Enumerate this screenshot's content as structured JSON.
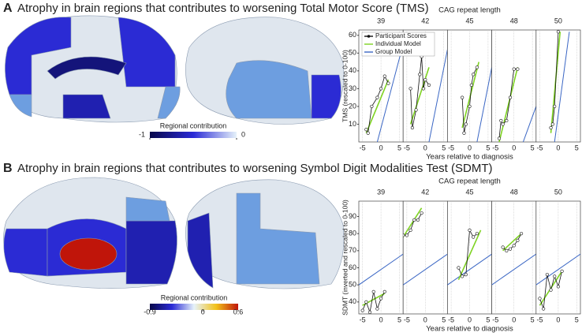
{
  "series": [
    {
      "name": "Participant Scores",
      "color": "#111111"
    },
    {
      "name": "Individual Model",
      "color": "#7ed321"
    },
    {
      "name": "Group Model",
      "color": "#3a66c4"
    }
  ],
  "panels": [
    {
      "label": "A",
      "title": "Atrophy in brain regions that contributes to worsening Total Motor Score (TMS)",
      "colorbar": {
        "title": "Regional contribution",
        "lim": [
          -1,
          0
        ],
        "ticks": [
          -1,
          0
        ],
        "colors": [
          "#08084a",
          "#2a2ad6",
          "#e6f2fa"
        ]
      },
      "chart": {
        "type": "line",
        "title": "CAG repeat length",
        "xlabel": "Years relative to diagnosis",
        "ylabel": "TMS (rescaled to 0-100)",
        "xlim": [
          -6,
          6
        ],
        "xticks": [
          -5,
          0,
          5
        ],
        "ylim": [
          0,
          63
        ],
        "yticks": [
          10,
          20,
          30,
          40,
          50,
          60
        ],
        "facets": [
          {
            "title": 39,
            "participant": {
              "x": [
                -4,
                -3.5,
                -2.5,
                -1,
                0,
                1,
                2
              ],
              "y": [
                7,
                5,
                20,
                25,
                30,
                37,
                33
              ]
            },
            "individual": {
              "x": [
                -4,
                2
              ],
              "y": [
                5,
                35
              ]
            },
            "group": {
              "x": [
                -1,
                6
              ],
              "y": [
                0,
                55
              ]
            }
          },
          {
            "title": 42,
            "participant": {
              "x": [
                -4,
                -3.5,
                -2.5,
                -1.5,
                -1,
                -0.5,
                0,
                1
              ],
              "y": [
                30,
                8,
                18,
                38,
                48,
                30,
                35,
                32
              ]
            },
            "individual": {
              "x": [
                -4,
                1
              ],
              "y": [
                10,
                42
              ]
            },
            "group": {
              "x": [
                1,
                6
              ],
              "y": [
                0,
                52
              ]
            }
          },
          {
            "title": 45,
            "participant": {
              "x": [
                -2,
                -1.5,
                -1,
                0,
                0.5,
                1,
                2
              ],
              "y": [
                25,
                5,
                10,
                20,
                32,
                38,
                42
              ]
            },
            "individual": {
              "x": [
                -2,
                2.5
              ],
              "y": [
                8,
                45
              ]
            },
            "group": {
              "x": [
                2,
                6
              ],
              "y": [
                0,
                42
              ]
            }
          },
          {
            "title": 48,
            "participant": {
              "x": [
                -4,
                -3.5,
                -3,
                -2,
                -1,
                0,
                1
              ],
              "y": [
                2,
                12,
                10,
                12,
                25,
                41,
                41
              ]
            },
            "individual": {
              "x": [
                -4,
                1
              ],
              "y": [
                0,
                42
              ]
            },
            "group": {
              "x": [
                2.5,
                6
              ],
              "y": [
                0,
                20
              ]
            }
          },
          {
            "title": 50,
            "participant": {
              "x": [
                -2,
                -1.5,
                -1,
                0
              ],
              "y": [
                8,
                10,
                20,
                62
              ]
            },
            "individual": {
              "x": [
                -2,
                0.5
              ],
              "y": [
                5,
                62
              ]
            },
            "group": {
              "x": [
                -1,
                3
              ],
              "y": [
                0,
                62
              ]
            }
          }
        ]
      }
    },
    {
      "label": "B",
      "title": "Atrophy in brain regions that contributes to worsening Symbol Digit Modalities Test (SDMT)",
      "colorbar": {
        "title": "Regional contribution",
        "lim": [
          -0.9,
          0.6
        ],
        "ticks": [
          -0.9,
          0,
          0.6
        ],
        "colors": [
          "#08084a",
          "#2a2ad6",
          "#e6f2fa",
          "#f2c21a",
          "#c0150a"
        ]
      },
      "chart": {
        "type": "line",
        "title": "CAG repeat length",
        "xlabel": "Years relative to diagnosis",
        "ylabel": "SDMT (inverted and rescaled to 0-100)",
        "xlim": [
          -6,
          6
        ],
        "xticks": [
          -5,
          0,
          5
        ],
        "ylim": [
          33,
          99
        ],
        "yticks": [
          40,
          50,
          60,
          70,
          80,
          90
        ],
        "facets": [
          {
            "title": 39,
            "participant": {
              "x": [
                -5,
                -4,
                -3,
                -2,
                -1,
                0,
                1
              ],
              "y": [
                35,
                40,
                34,
                46,
                36,
                42,
                46
              ]
            },
            "individual": {
              "x": [
                -5,
                1
              ],
              "y": [
                38,
                45
              ]
            },
            "group": {
              "x": [
                -6,
                6
              ],
              "y": [
                50,
                68
              ]
            }
          },
          {
            "title": 42,
            "participant": {
              "x": [
                -6,
                -5,
                -4,
                -3,
                -2,
                -1
              ],
              "y": [
                79,
                79,
                82,
                88,
                88,
                92
              ]
            },
            "individual": {
              "x": [
                -6,
                -1
              ],
              "y": [
                78,
                95
              ]
            },
            "group": {
              "x": [
                -6,
                6
              ],
              "y": [
                50,
                68
              ]
            }
          },
          {
            "title": 45,
            "participant": {
              "x": [
                -3,
                -2,
                -1,
                0,
                1,
                2
              ],
              "y": [
                60,
                55,
                56,
                82,
                78,
                80
              ]
            },
            "individual": {
              "x": [
                -3,
                3
              ],
              "y": [
                53,
                82
              ]
            },
            "group": {
              "x": [
                -6,
                6
              ],
              "y": [
                50,
                68
              ]
            }
          },
          {
            "title": 48,
            "participant": {
              "x": [
                -3,
                -2,
                -1,
                0,
                1,
                2
              ],
              "y": [
                72,
                70,
                71,
                73,
                76,
                80
              ]
            },
            "individual": {
              "x": [
                -3,
                2
              ],
              "y": [
                70,
                80
              ]
            },
            "group": {
              "x": [
                -6,
                6
              ],
              "y": [
                50,
                68
              ]
            }
          },
          {
            "title": 50,
            "participant": {
              "x": [
                -5,
                -4,
                -3,
                -2,
                -1,
                0,
                1
              ],
              "y": [
                42,
                36,
                56,
                47,
                55,
                49,
                58
              ]
            },
            "individual": {
              "x": [
                -5,
                1
              ],
              "y": [
                38,
                58
              ]
            },
            "group": {
              "x": [
                -6,
                6
              ],
              "y": [
                50,
                68
              ]
            }
          }
        ]
      }
    }
  ]
}
